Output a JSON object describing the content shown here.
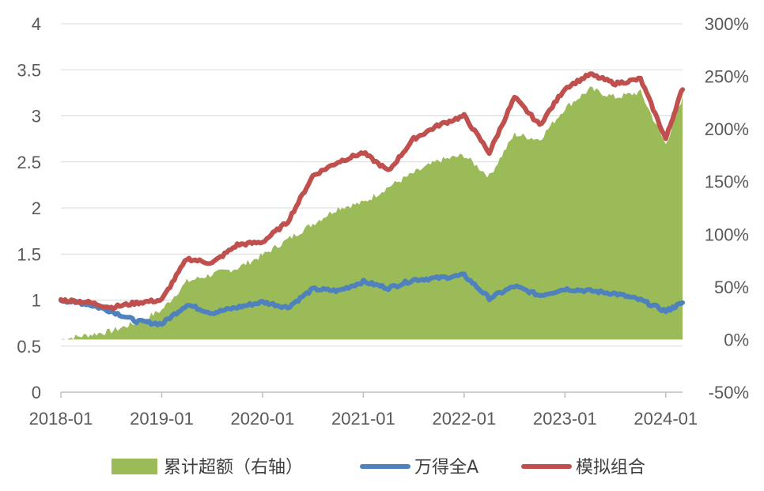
{
  "chart_data": {
    "type": "line",
    "title": "",
    "xlabel": "",
    "ylabel": "",
    "x_ticks": [
      "2018-01",
      "2019-01",
      "2020-01",
      "2021-01",
      "2022-01",
      "2023-01",
      "2024-01"
    ],
    "left_axis": {
      "ylim": [
        0,
        4
      ],
      "ticks": [
        "0",
        "0.5",
        "1",
        "1.5",
        "2",
        "2.5",
        "3",
        "3.5",
        "4"
      ]
    },
    "right_axis": {
      "ylim": [
        -0.5,
        3.0
      ],
      "ticks": [
        "-50%",
        "0%",
        "50%",
        "100%",
        "150%",
        "200%",
        "250%",
        "300%"
      ]
    },
    "grid": true,
    "legend_position": "bottom",
    "x": [
      "2018-01",
      "2018-04",
      "2018-07",
      "2018-10",
      "2019-01",
      "2019-04",
      "2019-07",
      "2019-10",
      "2020-01",
      "2020-04",
      "2020-07",
      "2020-10",
      "2021-01",
      "2021-04",
      "2021-07",
      "2021-10",
      "2022-01",
      "2022-04",
      "2022-07",
      "2022-10",
      "2023-01",
      "2023-04",
      "2023-07",
      "2023-10",
      "2024-01",
      "2024-03"
    ],
    "series": [
      {
        "name": "累计超额（右轴）",
        "kind": "area",
        "axis": "right",
        "color": "#9BBB59",
        "values": [
          0.0,
          0.04,
          0.08,
          0.16,
          0.28,
          0.55,
          0.62,
          0.68,
          0.8,
          0.95,
          1.1,
          1.25,
          1.3,
          1.45,
          1.58,
          1.7,
          1.75,
          1.55,
          1.95,
          1.9,
          2.2,
          2.38,
          2.3,
          2.35,
          1.85,
          2.3
        ]
      },
      {
        "name": "万得全A",
        "kind": "line",
        "axis": "left",
        "color": "#4F81BD",
        "values": [
          1.0,
          0.96,
          0.88,
          0.77,
          0.74,
          0.95,
          0.86,
          0.92,
          0.98,
          0.92,
          1.12,
          1.1,
          1.2,
          1.13,
          1.22,
          1.24,
          1.27,
          1.02,
          1.15,
          1.05,
          1.12,
          1.1,
          1.07,
          1.0,
          0.88,
          0.97
        ]
      },
      {
        "name": "模拟组合",
        "kind": "line",
        "axis": "left",
        "color": "#C0504D",
        "values": [
          1.0,
          0.98,
          0.92,
          0.97,
          1.0,
          1.45,
          1.4,
          1.6,
          1.63,
          1.85,
          2.35,
          2.5,
          2.6,
          2.4,
          2.75,
          2.9,
          3.0,
          2.6,
          3.2,
          2.9,
          3.3,
          3.45,
          3.35,
          3.4,
          2.75,
          3.3
        ]
      }
    ]
  }
}
